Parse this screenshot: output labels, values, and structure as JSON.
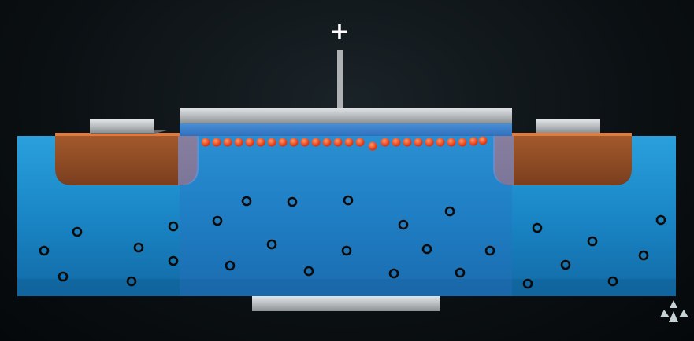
{
  "diagram": {
    "gate_voltage_symbol": "+",
    "watermark_text": "",
    "colors": {
      "substrate": "#1a86c6",
      "substrate_dark": "#0f5e93",
      "doped_region": "#8a4a26",
      "doped_edge": "#e07b3f",
      "metal_contact": "#bfc3c6",
      "channel_electron": "#ff4a1c",
      "hole_carrier": "#0a0a0a",
      "background": "#0b1013"
    },
    "icons": [
      "gate-terminal",
      "source-contact",
      "drain-contact",
      "body-contact",
      "electron-dot",
      "hole-circle",
      "brand-logo-icon"
    ]
  }
}
